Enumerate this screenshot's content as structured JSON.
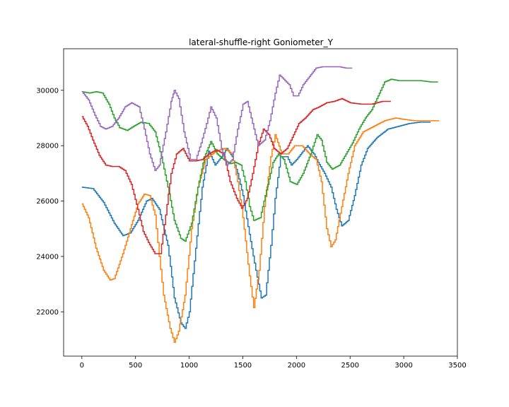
{
  "chart_data": {
    "type": "line",
    "title": "lateral-shuffle-right Goniometer_Y",
    "xlabel": "",
    "ylabel": "",
    "xlim": [
      -170,
      3500
    ],
    "ylim": [
      20400,
      31500
    ],
    "xticks": [
      0,
      500,
      1000,
      1500,
      2000,
      2500,
      3000,
      3500
    ],
    "yticks": [
      22000,
      24000,
      26000,
      28000,
      30000
    ],
    "grid": false,
    "legend": "none",
    "series": [
      {
        "color": "#1f77b4",
        "points": [
          [
            0,
            26500
          ],
          [
            100,
            26450
          ],
          [
            200,
            25950
          ],
          [
            300,
            25200
          ],
          [
            380,
            24750
          ],
          [
            450,
            24850
          ],
          [
            520,
            25300
          ],
          [
            600,
            26000
          ],
          [
            650,
            26100
          ],
          [
            720,
            25700
          ],
          [
            800,
            24400
          ],
          [
            860,
            22500
          ],
          [
            920,
            21600
          ],
          [
            960,
            21400
          ],
          [
            1000,
            22000
          ],
          [
            1060,
            24300
          ],
          [
            1120,
            26500
          ],
          [
            1180,
            27800
          ],
          [
            1240,
            27300
          ],
          [
            1300,
            27600
          ],
          [
            1350,
            27900
          ],
          [
            1400,
            27600
          ],
          [
            1450,
            27000
          ],
          [
            1500,
            26200
          ],
          [
            1560,
            24800
          ],
          [
            1620,
            23500
          ],
          [
            1670,
            22500
          ],
          [
            1710,
            22600
          ],
          [
            1760,
            24400
          ],
          [
            1800,
            26100
          ],
          [
            1850,
            27600
          ],
          [
            1910,
            27600
          ],
          [
            1950,
            27300
          ],
          [
            2000,
            27500
          ],
          [
            2060,
            27800
          ],
          [
            2100,
            28000
          ],
          [
            2160,
            27700
          ],
          [
            2200,
            27400
          ],
          [
            2260,
            27000
          ],
          [
            2320,
            26500
          ],
          [
            2370,
            25700
          ],
          [
            2420,
            25100
          ],
          [
            2480,
            25300
          ],
          [
            2540,
            26200
          ],
          [
            2600,
            27300
          ],
          [
            2660,
            27900
          ],
          [
            2750,
            28300
          ],
          [
            2850,
            28600
          ],
          [
            2950,
            28700
          ],
          [
            3050,
            28800
          ],
          [
            3150,
            28850
          ],
          [
            3250,
            28850
          ]
        ]
      },
      {
        "color": "#ff7f0e",
        "points": [
          [
            0,
            25900
          ],
          [
            60,
            25400
          ],
          [
            130,
            24300
          ],
          [
            200,
            23500
          ],
          [
            260,
            23150
          ],
          [
            300,
            23200
          ],
          [
            380,
            24100
          ],
          [
            450,
            25000
          ],
          [
            520,
            25900
          ],
          [
            580,
            26250
          ],
          [
            630,
            26200
          ],
          [
            680,
            25500
          ],
          [
            720,
            24000
          ],
          [
            760,
            22600
          ],
          [
            820,
            21400
          ],
          [
            860,
            20900
          ],
          [
            900,
            21300
          ],
          [
            960,
            22600
          ],
          [
            1020,
            25000
          ],
          [
            1080,
            26500
          ],
          [
            1150,
            27500
          ],
          [
            1250,
            27800
          ],
          [
            1330,
            27900
          ],
          [
            1400,
            27700
          ],
          [
            1450,
            26700
          ],
          [
            1500,
            25400
          ],
          [
            1560,
            23300
          ],
          [
            1600,
            22150
          ],
          [
            1650,
            23500
          ],
          [
            1700,
            25800
          ],
          [
            1760,
            27600
          ],
          [
            1800,
            28400
          ],
          [
            1860,
            27700
          ],
          [
            1920,
            27700
          ],
          [
            1980,
            28000
          ],
          [
            2050,
            28000
          ],
          [
            2120,
            27700
          ],
          [
            2180,
            27500
          ],
          [
            2230,
            26700
          ],
          [
            2280,
            25000
          ],
          [
            2320,
            24350
          ],
          [
            2360,
            24600
          ],
          [
            2420,
            25800
          ],
          [
            2480,
            27000
          ],
          [
            2540,
            28000
          ],
          [
            2620,
            28500
          ],
          [
            2720,
            28700
          ],
          [
            2820,
            28900
          ],
          [
            2920,
            29000
          ],
          [
            3000,
            28950
          ],
          [
            3100,
            28900
          ],
          [
            3200,
            28900
          ],
          [
            3330,
            28900
          ]
        ]
      },
      {
        "color": "#2ca02c",
        "points": [
          [
            0,
            29950
          ],
          [
            70,
            29900
          ],
          [
            130,
            29950
          ],
          [
            190,
            29900
          ],
          [
            250,
            29500
          ],
          [
            300,
            29000
          ],
          [
            350,
            28650
          ],
          [
            420,
            28550
          ],
          [
            480,
            28700
          ],
          [
            550,
            28850
          ],
          [
            620,
            28800
          ],
          [
            680,
            28500
          ],
          [
            740,
            27600
          ],
          [
            800,
            26500
          ],
          [
            860,
            25300
          ],
          [
            920,
            24650
          ],
          [
            960,
            24550
          ],
          [
            1020,
            25200
          ],
          [
            1080,
            26500
          ],
          [
            1140,
            27600
          ],
          [
            1200,
            28150
          ],
          [
            1260,
            27700
          ],
          [
            1320,
            27500
          ],
          [
            1380,
            27350
          ],
          [
            1430,
            27400
          ],
          [
            1480,
            27300
          ],
          [
            1520,
            26700
          ],
          [
            1560,
            25800
          ],
          [
            1600,
            25300
          ],
          [
            1660,
            25400
          ],
          [
            1720,
            26400
          ],
          [
            1780,
            27400
          ],
          [
            1830,
            27700
          ],
          [
            1880,
            27500
          ],
          [
            1940,
            26700
          ],
          [
            2000,
            26600
          ],
          [
            2060,
            27000
          ],
          [
            2130,
            27700
          ],
          [
            2190,
            28400
          ],
          [
            2230,
            28200
          ],
          [
            2280,
            27400
          ],
          [
            2330,
            27150
          ],
          [
            2400,
            27300
          ],
          [
            2460,
            27700
          ],
          [
            2520,
            28100
          ],
          [
            2580,
            28600
          ],
          [
            2640,
            29000
          ],
          [
            2700,
            29300
          ],
          [
            2760,
            29800
          ],
          [
            2820,
            30300
          ],
          [
            2880,
            30400
          ],
          [
            2950,
            30350
          ],
          [
            3050,
            30350
          ],
          [
            3150,
            30350
          ],
          [
            3250,
            30300
          ],
          [
            3320,
            30300
          ]
        ]
      },
      {
        "color": "#d62728",
        "points": [
          [
            0,
            29050
          ],
          [
            50,
            28700
          ],
          [
            100,
            28200
          ],
          [
            160,
            27650
          ],
          [
            220,
            27300
          ],
          [
            280,
            27250
          ],
          [
            340,
            27250
          ],
          [
            400,
            27100
          ],
          [
            460,
            26600
          ],
          [
            520,
            25700
          ],
          [
            570,
            24900
          ],
          [
            620,
            24500
          ],
          [
            680,
            24100
          ],
          [
            730,
            24100
          ],
          [
            780,
            25500
          ],
          [
            830,
            27000
          ],
          [
            880,
            27700
          ],
          [
            940,
            27900
          ],
          [
            1000,
            27450
          ],
          [
            1060,
            27450
          ],
          [
            1120,
            27500
          ],
          [
            1180,
            27700
          ],
          [
            1250,
            27850
          ],
          [
            1320,
            27700
          ],
          [
            1380,
            26700
          ],
          [
            1440,
            26100
          ],
          [
            1490,
            25750
          ],
          [
            1540,
            26100
          ],
          [
            1590,
            27000
          ],
          [
            1640,
            28000
          ],
          [
            1690,
            28600
          ],
          [
            1740,
            28400
          ],
          [
            1790,
            27900
          ],
          [
            1850,
            27700
          ],
          [
            1910,
            27900
          ],
          [
            1960,
            28300
          ],
          [
            2020,
            28800
          ],
          [
            2080,
            29000
          ],
          [
            2150,
            29300
          ],
          [
            2210,
            29400
          ],
          [
            2280,
            29550
          ],
          [
            2350,
            29600
          ],
          [
            2420,
            29700
          ],
          [
            2500,
            29550
          ],
          [
            2600,
            29500
          ],
          [
            2700,
            29500
          ],
          [
            2800,
            29600
          ],
          [
            2880,
            29600
          ]
        ]
      },
      {
        "color": "#9467bd",
        "points": [
          [
            0,
            29950
          ],
          [
            60,
            29650
          ],
          [
            120,
            29100
          ],
          [
            170,
            28700
          ],
          [
            220,
            28600
          ],
          [
            280,
            28700
          ],
          [
            340,
            29000
          ],
          [
            400,
            29400
          ],
          [
            460,
            29550
          ],
          [
            530,
            29400
          ],
          [
            580,
            28600
          ],
          [
            630,
            27700
          ],
          [
            680,
            27100
          ],
          [
            720,
            27300
          ],
          [
            780,
            28500
          ],
          [
            830,
            29600
          ],
          [
            860,
            30000
          ],
          [
            900,
            29700
          ],
          [
            950,
            28500
          ],
          [
            1010,
            27500
          ],
          [
            1060,
            27500
          ],
          [
            1110,
            28100
          ],
          [
            1160,
            28800
          ],
          [
            1200,
            29400
          ],
          [
            1250,
            29000
          ],
          [
            1300,
            27900
          ],
          [
            1350,
            27300
          ],
          [
            1400,
            27500
          ],
          [
            1450,
            28600
          ],
          [
            1500,
            29500
          ],
          [
            1540,
            29600
          ],
          [
            1590,
            28800
          ],
          [
            1640,
            28000
          ],
          [
            1700,
            28200
          ],
          [
            1750,
            28900
          ],
          [
            1800,
            29900
          ],
          [
            1840,
            30550
          ],
          [
            1880,
            30400
          ],
          [
            1930,
            30200
          ],
          [
            1970,
            29800
          ],
          [
            2010,
            29800
          ],
          [
            2060,
            30200
          ],
          [
            2120,
            30500
          ],
          [
            2180,
            30800
          ],
          [
            2240,
            30850
          ],
          [
            2320,
            30850
          ],
          [
            2400,
            30850
          ],
          [
            2460,
            30800
          ],
          [
            2520,
            30800
          ]
        ]
      }
    ]
  }
}
